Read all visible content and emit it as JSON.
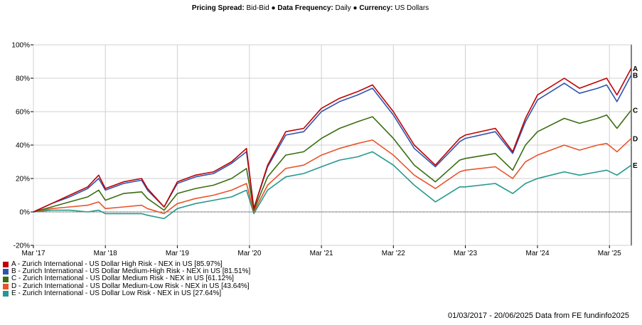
{
  "header": {
    "spread_label": "Pricing Spread:",
    "spread_value": "Bid-Bid",
    "freq_label": "Data Frequency:",
    "freq_value": "Daily",
    "currency_label": "Currency:",
    "currency_value": "US Dollars",
    "separator": "●"
  },
  "footer": {
    "text": "01/03/2017 - 20/06/2025 Data from FE fundinfo2025"
  },
  "chart_data": {
    "type": "line",
    "title": "",
    "xlabel": "",
    "ylabel": "",
    "ylim": [
      -20,
      100
    ],
    "yticks": [
      -20,
      0,
      20,
      40,
      60,
      80,
      100
    ],
    "ytick_labels": [
      "-20%",
      "0%",
      "20%",
      "40%",
      "60%",
      "80%",
      "100%"
    ],
    "xlim": [
      "2017-03-01",
      "2025-06-20"
    ],
    "xticks": [
      "2017-03-01",
      "2018-03-01",
      "2019-03-01",
      "2020-03-01",
      "2021-03-01",
      "2022-03-01",
      "2023-03-01",
      "2024-03-01",
      "2025-03-01"
    ],
    "xtick_labels": [
      "Mar '17",
      "Mar '18",
      "Mar '19",
      "Mar '20",
      "Mar '21",
      "Mar '22",
      "Mar '23",
      "Mar '24",
      "Mar '25"
    ],
    "grid": true,
    "legend_position": "bottom-left",
    "x": [
      "2017-03-01",
      "2017-06-01",
      "2017-09-01",
      "2017-12-01",
      "2018-01-26",
      "2018-03-01",
      "2018-06-01",
      "2018-09-01",
      "2018-10-01",
      "2018-12-24",
      "2019-03-01",
      "2019-06-01",
      "2019-09-01",
      "2019-12-01",
      "2020-02-15",
      "2020-03-23",
      "2020-06-01",
      "2020-09-01",
      "2020-12-01",
      "2021-03-01",
      "2021-06-01",
      "2021-09-01",
      "2021-11-15",
      "2022-03-01",
      "2022-06-15",
      "2022-09-30",
      "2023-01-31",
      "2023-03-01",
      "2023-07-31",
      "2023-10-27",
      "2023-12-31",
      "2024-03-01",
      "2024-07-15",
      "2024-09-30",
      "2024-12-31",
      "2025-02-15",
      "2025-04-08",
      "2025-06-20"
    ],
    "series": [
      {
        "name": "A - Zurich International - US Dollar High Risk - NEX in US [85.97%]",
        "label": "A",
        "color": "#c00000",
        "values": [
          0,
          5,
          10,
          15,
          22,
          14,
          18,
          20,
          14,
          3,
          18,
          22,
          24,
          30,
          38,
          2,
          28,
          48,
          50,
          62,
          68,
          72,
          76,
          60,
          40,
          28,
          44,
          46,
          50,
          36,
          56,
          70,
          80,
          74,
          78,
          80,
          70,
          86
        ]
      },
      {
        "name": "B - Zurich International - US Dollar Medium-High Risk - NEX in US [81.51%]",
        "label": "B",
        "color": "#2e54b0",
        "values": [
          0,
          5,
          9,
          14,
          20,
          13,
          17,
          19,
          13,
          3,
          17,
          21,
          23,
          29,
          36,
          2,
          27,
          46,
          48,
          60,
          66,
          70,
          74,
          58,
          38,
          27,
          42,
          44,
          48,
          35,
          54,
          67,
          77,
          71,
          74,
          76,
          66,
          82
        ]
      },
      {
        "name": "C - Zurich International - US Dollar Medium Risk - NEX in US [61.12%]",
        "label": "C",
        "color": "#3a6e12",
        "values": [
          0,
          3,
          6,
          9,
          13,
          7,
          11,
          12,
          8,
          1,
          11,
          14,
          16,
          20,
          26,
          1,
          21,
          34,
          36,
          44,
          50,
          54,
          57,
          44,
          28,
          18,
          31,
          32,
          35,
          25,
          40,
          48,
          56,
          53,
          56,
          58,
          50,
          61
        ]
      },
      {
        "name": "D - Zurich International - US Dollar Medium-Low Risk - NEX in US [43.64%]",
        "label": "D",
        "color": "#e8542a",
        "values": [
          0,
          2,
          3,
          4,
          6,
          2,
          3,
          4,
          2,
          -1,
          5,
          8,
          10,
          13,
          17,
          0,
          16,
          26,
          28,
          34,
          38,
          41,
          43,
          34,
          22,
          14,
          24,
          25,
          27,
          20,
          30,
          34,
          40,
          37,
          40,
          41,
          36,
          44
        ]
      },
      {
        "name": "E - Zurich International - US Dollar Low Risk - NEX in US [27.64%]",
        "label": "E",
        "color": "#24998c",
        "values": [
          0,
          1,
          1,
          0,
          1,
          -1,
          -1,
          -1,
          -2,
          -4,
          2,
          5,
          7,
          9,
          13,
          -1,
          13,
          21,
          23,
          27,
          31,
          33,
          36,
          28,
          16,
          6,
          15,
          15,
          17,
          11,
          17,
          20,
          24,
          22,
          24,
          25,
          22,
          28
        ]
      }
    ]
  }
}
